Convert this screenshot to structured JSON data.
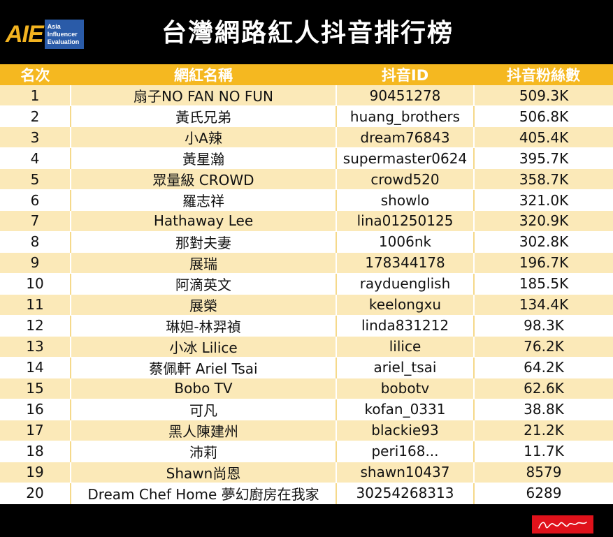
{
  "logo": {
    "mark": "AIE",
    "line1": "Asia",
    "line2": "Influencer",
    "line3": "Evaluation"
  },
  "title": "台灣網路紅人抖音排行榜",
  "colors": {
    "header_bg": "#f5b820",
    "row_alt": "#fbe9b8",
    "background": "#000000",
    "logo_gold": "#f2b320",
    "logo_blue": "#2a5ba8",
    "signature_red": "#e0121b"
  },
  "table": {
    "headers": [
      "名次",
      "網紅名稱",
      "抖音ID",
      "抖音粉絲數"
    ],
    "rows": [
      [
        "1",
        "扇子NO FAN NO FUN",
        "90451278",
        "509.3K"
      ],
      [
        "2",
        "黃氏兄弟",
        "huang_brothers",
        "506.8K"
      ],
      [
        "3",
        "小A辣",
        "dream76843",
        "405.4K"
      ],
      [
        "4",
        "黃星瀚",
        "supermaster0624",
        "395.7K"
      ],
      [
        "5",
        "眾量級 CROWD",
        "crowd520",
        "358.7K"
      ],
      [
        "6",
        "羅志祥",
        "showlo",
        "321.0K"
      ],
      [
        "7",
        "Hathaway Lee",
        "lina01250125",
        "320.9K"
      ],
      [
        "8",
        "那對夫妻",
        "1006nk",
        "302.8K"
      ],
      [
        "9",
        "展瑞",
        "178344178",
        "196.7K"
      ],
      [
        "10",
        "阿滴英文",
        "rayduenglish",
        "185.5K"
      ],
      [
        "11",
        "展榮",
        "keelongxu",
        "134.4K"
      ],
      [
        "12",
        "琳妲-林羿禎",
        "linda831212",
        "98.3K"
      ],
      [
        "13",
        "小冰 Lilice",
        "lilice",
        "76.2K"
      ],
      [
        "14",
        "蔡佩軒 Ariel Tsai",
        "ariel_tsai",
        "64.2K"
      ],
      [
        "15",
        "Bobo TV",
        "bobotv",
        "62.6K"
      ],
      [
        "16",
        "可凡",
        "kofan_0331",
        "38.8K"
      ],
      [
        "17",
        "黑人陳建州",
        "blackie93",
        "21.2K"
      ],
      [
        "18",
        "沛莉",
        "peri168...",
        "11.7K"
      ],
      [
        "19",
        "Shawn尚恩",
        "shawn10437",
        "8579"
      ],
      [
        "20",
        "Dream Chef Home 夢幻廚房在我家",
        "30254268313",
        "6289"
      ]
    ]
  }
}
